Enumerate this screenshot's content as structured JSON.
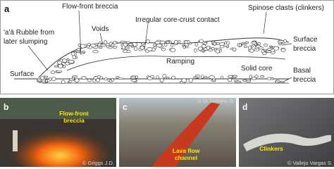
{
  "panel_a": {
    "letter": "a",
    "flow_front_breccia": "Flow-front breccia",
    "voids": "Voids",
    "core_crust_contact": "Irregular core-crust contact",
    "spinose_clasts": "Spinose clasts (clinkers)",
    "rubble": [
      "'a'ā Rubble from",
      "later slumping"
    ],
    "surface": "Surface",
    "ramping": "Ramping",
    "solid_core": "Solid core",
    "surface_breccia": [
      "Surface",
      "breccia"
    ],
    "basal_breccia": [
      "Basal",
      "breccia"
    ]
  },
  "panel_b": {
    "letter": "b",
    "label": [
      "Flow-front",
      "breccia"
    ],
    "credit": "© Griggs J.D."
  },
  "panel_c": {
    "letter": "c",
    "label": [
      "Lava flow",
      "channel"
    ],
    "credit": "© Di Stefano G."
  },
  "panel_d": {
    "letter": "d",
    "label": [
      "Clinkers"
    ],
    "credit": "© Vallejo Vargas S."
  }
}
